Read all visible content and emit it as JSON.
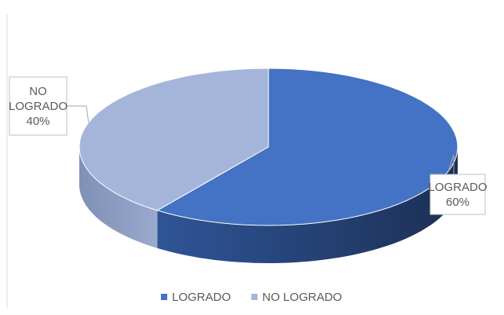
{
  "chart_data": {
    "type": "pie",
    "three_d": true,
    "categories": [
      "LOGRADO",
      "NO LOGRADO"
    ],
    "values": [
      60,
      40
    ],
    "value_labels": [
      "60%",
      "40%"
    ],
    "colors": [
      "#4472c4",
      "#a5b5da"
    ],
    "legend": "bottom"
  }
}
